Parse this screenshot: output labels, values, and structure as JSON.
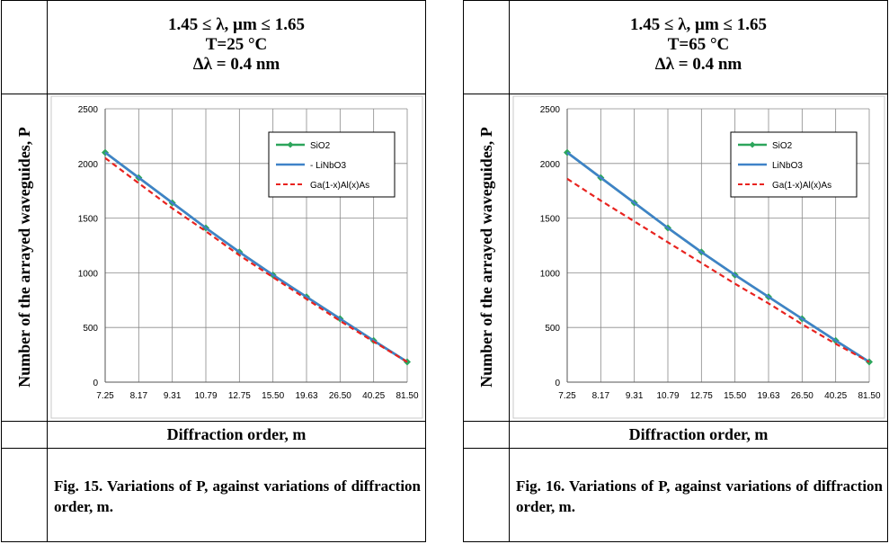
{
  "figures": [
    {
      "conditions": [
        "1.45 ≤ λ, µm ≤ 1.65",
        "T=25 °C",
        "Δλ = 0.4 nm"
      ],
      "caption": "Fig. 15. Variations of  P, against variations of diffraction order, m."
    },
    {
      "conditions": [
        "1.45 ≤ λ, µm ≤ 1.65",
        "T=65 °C",
        "Δλ = 0.4 nm"
      ],
      "caption": "Fig. 16. Variations of  P, against variations of diffraction order, m."
    }
  ],
  "chart_data": [
    {
      "type": "line",
      "xlabel": "Diffraction order, m",
      "ylabel": "Number of the arrayed waveguides, P",
      "categories": [
        "7.25",
        "8.17",
        "9.31",
        "10.79",
        "12.75",
        "15.50",
        "19.63",
        "26.50",
        "40.25",
        "81.50"
      ],
      "ylim": [
        0,
        2500
      ],
      "yticks": [
        0,
        500,
        1000,
        1500,
        2000,
        2500
      ],
      "grid": true,
      "legend_position": "top-right",
      "legend_labels": [
        "SiO2",
        "- LiNbO3",
        "Ga(1-x)Al(x)As"
      ],
      "series": [
        {
          "name": "SiO2",
          "color": "#2ca55b",
          "style": "solid-diamond",
          "values": [
            2100,
            1870,
            1640,
            1410,
            1190,
            980,
            780,
            580,
            380,
            185
          ]
        },
        {
          "name": "LiNbO3",
          "color": "#3f82c8",
          "style": "solid",
          "values": [
            2100,
            1870,
            1640,
            1410,
            1190,
            980,
            780,
            580,
            380,
            185
          ]
        },
        {
          "name": "Ga(1-x)Al(x)As",
          "color": "#e8231f",
          "style": "dashed",
          "values": [
            2050,
            1820,
            1590,
            1380,
            1160,
            960,
            760,
            560,
            370,
            185
          ]
        }
      ]
    },
    {
      "type": "line",
      "xlabel": "Diffraction order, m",
      "ylabel": "Number of the arrayed waveguides, P",
      "categories": [
        "7.25",
        "8.17",
        "9.31",
        "10.79",
        "12.75",
        "15.50",
        "19.63",
        "26.50",
        "40.25",
        "81.50"
      ],
      "ylim": [
        0,
        2500
      ],
      "yticks": [
        0,
        500,
        1000,
        1500,
        2000,
        2500
      ],
      "grid": true,
      "legend_position": "top-right",
      "legend_labels": [
        "SiO2",
        "LiNbO3",
        "Ga(1-x)Al(x)As"
      ],
      "series": [
        {
          "name": "SiO2",
          "color": "#2ca55b",
          "style": "solid-diamond",
          "values": [
            2100,
            1870,
            1640,
            1410,
            1190,
            980,
            780,
            580,
            380,
            185
          ]
        },
        {
          "name": "LiNbO3",
          "color": "#3f82c8",
          "style": "solid",
          "values": [
            2100,
            1870,
            1640,
            1410,
            1190,
            980,
            780,
            580,
            380,
            185
          ]
        },
        {
          "name": "Ga(1-x)Al(x)As",
          "color": "#e8231f",
          "style": "dashed",
          "values": [
            1860,
            1660,
            1470,
            1280,
            1090,
            900,
            720,
            530,
            350,
            185
          ]
        }
      ]
    }
  ]
}
